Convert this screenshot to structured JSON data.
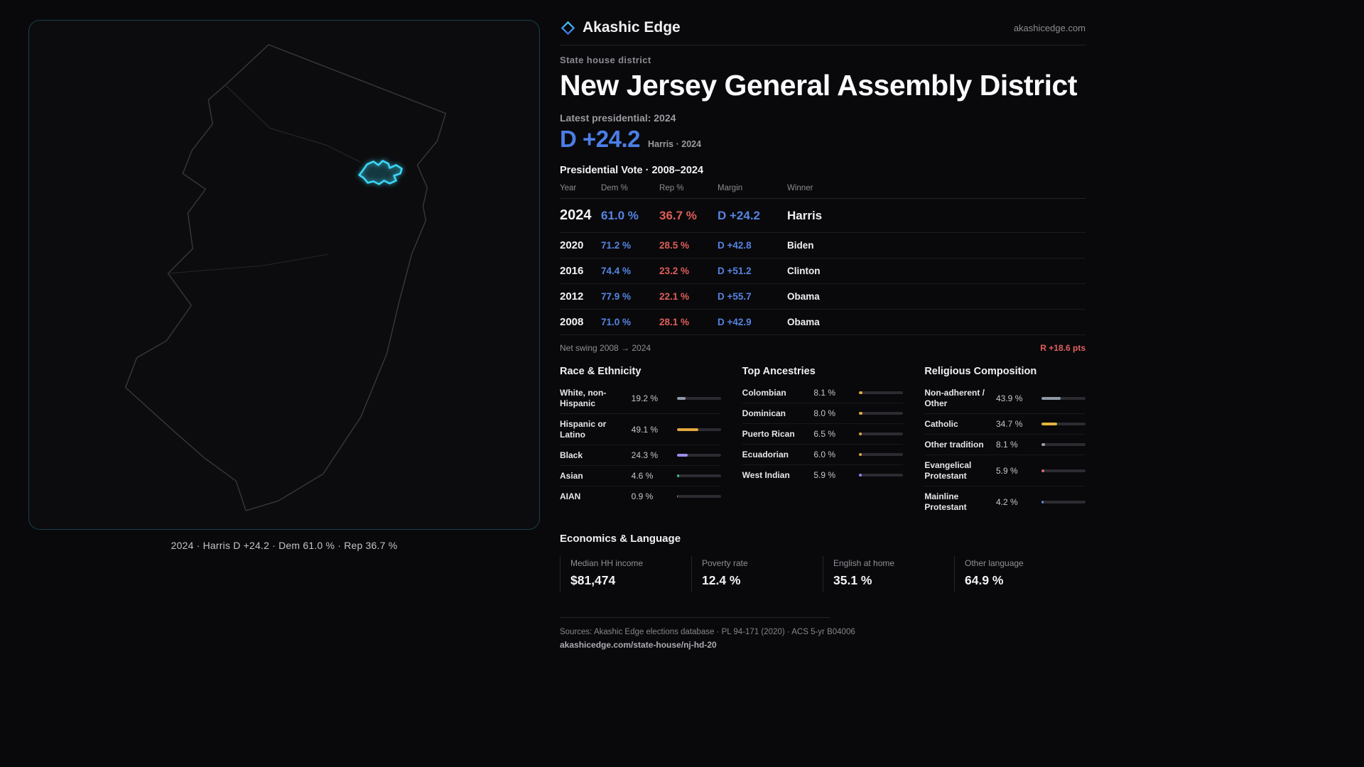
{
  "brand": {
    "name": "Akashic Edge",
    "domain": "akashicedge.com"
  },
  "header": {
    "kicker": "State house district",
    "title": "New Jersey General Assembly District",
    "latest_label": "Latest presidential: 2024",
    "headline_margin": "D +24.2",
    "headline_sub": "Harris · 2024"
  },
  "map": {
    "caption": "2024 · Harris D +24.2 · Dem 61.0 % · Rep 36.7 %"
  },
  "vote_table": {
    "title": "Presidential Vote · 2008–2024",
    "columns": [
      "Year",
      "Dem %",
      "Rep %",
      "Margin",
      "Winner"
    ],
    "rows": [
      {
        "year": "2024",
        "dem": "61.0 %",
        "rep": "36.7 %",
        "margin": "D +24.2",
        "winner": "Harris"
      },
      {
        "year": "2020",
        "dem": "71.2 %",
        "rep": "28.5 %",
        "margin": "D +42.8",
        "winner": "Biden"
      },
      {
        "year": "2016",
        "dem": "74.4 %",
        "rep": "23.2 %",
        "margin": "D +51.2",
        "winner": "Clinton"
      },
      {
        "year": "2012",
        "dem": "77.9 %",
        "rep": "22.1 %",
        "margin": "D +55.7",
        "winner": "Obama"
      },
      {
        "year": "2008",
        "dem": "71.0 %",
        "rep": "28.1 %",
        "margin": "D +42.9",
        "winner": "Obama"
      }
    ],
    "net_swing_label": "Net swing 2008 → 2024",
    "net_swing_value": "R +18.6 pts"
  },
  "demographics": {
    "columns": [
      {
        "title": "Race & Ethnicity",
        "rows": [
          {
            "label": "White, non-Hispanic",
            "value": "19.2 %",
            "pct": 19.2,
            "color": "#8f9aa8"
          },
          {
            "label": "Hispanic or Latino",
            "value": "49.1 %",
            "pct": 49.1,
            "color": "#e2a83d"
          },
          {
            "label": "Black",
            "value": "24.3 %",
            "pct": 24.3,
            "color": "#9c8df0"
          },
          {
            "label": "Asian",
            "value": "4.6 %",
            "pct": 4.6,
            "color": "#37c387"
          },
          {
            "label": "AIAN",
            "value": "0.9 %",
            "pct": 0.9,
            "color": "#d9604f"
          }
        ]
      },
      {
        "title": "Top Ancestries",
        "rows": [
          {
            "label": "Colombian",
            "value": "8.1 %",
            "pct": 8.1,
            "color": "#e2a83d"
          },
          {
            "label": "Dominican",
            "value": "8.0 %",
            "pct": 8.0,
            "color": "#e2a83d"
          },
          {
            "label": "Puerto Rican",
            "value": "6.5 %",
            "pct": 6.5,
            "color": "#e2a83d"
          },
          {
            "label": "Ecuadorian",
            "value": "6.0 %",
            "pct": 6.0,
            "color": "#e2a83d"
          },
          {
            "label": "West Indian",
            "value": "5.9 %",
            "pct": 5.9,
            "color": "#8d86ef"
          }
        ]
      },
      {
        "title": "Religious Composition",
        "rows": [
          {
            "label": "Non-adherent / Other",
            "value": "43.9 %",
            "pct": 43.9,
            "color": "#8f9aa8"
          },
          {
            "label": "Catholic",
            "value": "34.7 %",
            "pct": 34.7,
            "color": "#e2b43d"
          },
          {
            "label": "Other tradition",
            "value": "8.1 %",
            "pct": 8.1,
            "color": "#9aa0a8"
          },
          {
            "label": "Evangelical Protestant",
            "value": "5.9 %",
            "pct": 5.9,
            "color": "#e2607a"
          },
          {
            "label": "Mainline Protestant",
            "value": "4.2 %",
            "pct": 4.2,
            "color": "#5b87e0"
          }
        ]
      }
    ]
  },
  "economics": {
    "title": "Economics & Language",
    "stats": [
      {
        "label": "Median HH income",
        "value": "$81,474"
      },
      {
        "label": "Poverty rate",
        "value": "12.4 %"
      },
      {
        "label": "English at home",
        "value": "35.1 %"
      },
      {
        "label": "Other language",
        "value": "64.9 %"
      }
    ]
  },
  "footer": {
    "sources": "Sources: Akashic Edge elections database · PL 94-171 (2020) · ACS 5-yr B04006",
    "permalink": "akashicedge.com/state-house/nj-hd-20"
  },
  "colors": {
    "dem_blue": "#5584e2",
    "rep_red": "#e05e58",
    "district_cyan": "#3bd8f6",
    "background": "#09090b"
  }
}
